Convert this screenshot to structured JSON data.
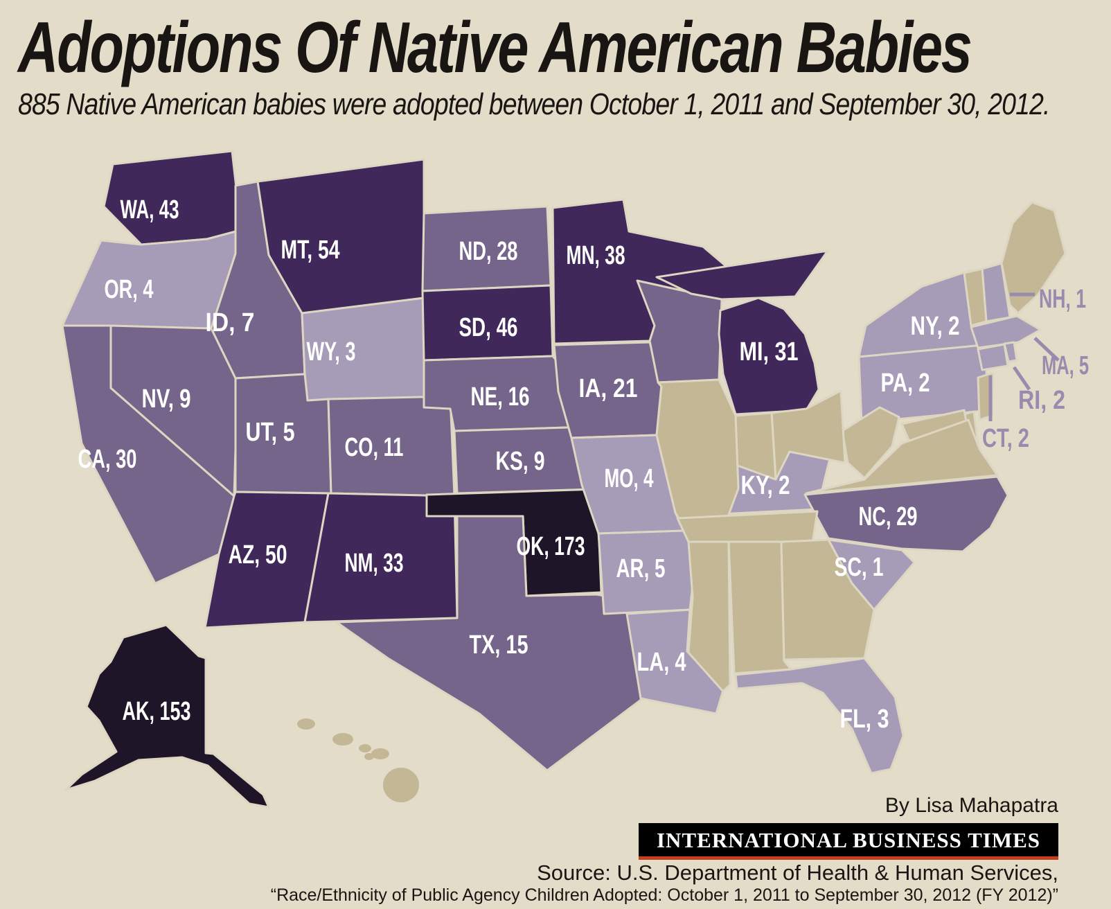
{
  "header": {
    "title": "Adoptions Of Native American Babies",
    "subtitle": "885 Native American babies were adopted between October 1, 2011 and September 30, 2012."
  },
  "footer": {
    "byline": "By Lisa Mahapatra",
    "logo_text": "International Business Times",
    "source_line1": "Source: U.S. Department of Health & Human Services,",
    "source_line2": "“Race/Ethnicity of Public Agency Children Adopted: October 1, 2011 to September 30, 2012 (FY 2012)”"
  },
  "colors": {
    "background": "#e3dcc9",
    "border": "#ddd6c2",
    "title_text": "#181512",
    "subtitle_text": "#181512",
    "state_label": "#ffffff",
    "callout_label": "#998bad",
    "byline_text": "#181512",
    "source_text": "#181512",
    "logo_background": "#000000",
    "logo_text": "#ffffff",
    "logo_underline": "#c5401d",
    "categories": {
      "none": "#c4b795",
      "light": "#a69cb8",
      "medium": "#75658b",
      "dark": "#40285a",
      "darkest": "#1f1528"
    }
  },
  "chart_data": {
    "type": "heatmap",
    "subtype": "us-choropleth-map",
    "title": "Adoptions Of Native American Babies",
    "total_adoptions": 885,
    "period": "October 1, 2011 to September 30, 2012",
    "legend": "none shown; values labeled directly on states, darker = more adoptions, tan = no data shown",
    "states": [
      {
        "code": "WA",
        "value": 43,
        "label": "WA, 43",
        "category": "dark"
      },
      {
        "code": "OR",
        "value": 4,
        "label": "OR, 4",
        "category": "light"
      },
      {
        "code": "CA",
        "value": 30,
        "label": "CA, 30",
        "category": "medium"
      },
      {
        "code": "NV",
        "value": 9,
        "label": "NV, 9",
        "category": "medium"
      },
      {
        "code": "ID",
        "value": 7,
        "label": "ID, 7",
        "category": "medium"
      },
      {
        "code": "MT",
        "value": 54,
        "label": "MT, 54",
        "category": "dark"
      },
      {
        "code": "WY",
        "value": 3,
        "label": "WY, 3",
        "category": "light"
      },
      {
        "code": "UT",
        "value": 5,
        "label": "UT, 5",
        "category": "medium"
      },
      {
        "code": "CO",
        "value": 11,
        "label": "CO, 11",
        "category": "medium"
      },
      {
        "code": "AZ",
        "value": 50,
        "label": "AZ, 50",
        "category": "dark"
      },
      {
        "code": "NM",
        "value": 33,
        "label": "NM, 33",
        "category": "dark"
      },
      {
        "code": "ND",
        "value": 28,
        "label": "ND, 28",
        "category": "medium"
      },
      {
        "code": "SD",
        "value": 46,
        "label": "SD, 46",
        "category": "dark"
      },
      {
        "code": "NE",
        "value": 16,
        "label": "NE, 16",
        "category": "medium"
      },
      {
        "code": "KS",
        "value": 9,
        "label": "KS, 9",
        "category": "medium"
      },
      {
        "code": "OK",
        "value": 173,
        "label": "OK, 173",
        "category": "darkest"
      },
      {
        "code": "TX",
        "value": 15,
        "label": "TX, 15",
        "category": "medium"
      },
      {
        "code": "MN",
        "value": 38,
        "label": "MN, 38",
        "category": "dark"
      },
      {
        "code": "IA",
        "value": 21,
        "label": "IA, 21",
        "category": "medium"
      },
      {
        "code": "MO",
        "value": 4,
        "label": "MO, 4",
        "category": "light"
      },
      {
        "code": "AR",
        "value": 5,
        "label": "AR, 5",
        "category": "light"
      },
      {
        "code": "LA",
        "value": 4,
        "label": "LA, 4",
        "category": "light"
      },
      {
        "code": "WI",
        "value": null,
        "label": "",
        "category": "medium"
      },
      {
        "code": "MI",
        "value": 31,
        "label": "MI, 31",
        "category": "dark"
      },
      {
        "code": "KY",
        "value": 2,
        "label": "KY, 2",
        "category": "light"
      },
      {
        "code": "NC",
        "value": 29,
        "label": "NC, 29",
        "category": "medium"
      },
      {
        "code": "SC",
        "value": 1,
        "label": "SC, 1",
        "category": "light"
      },
      {
        "code": "FL",
        "value": 3,
        "label": "FL, 3",
        "category": "light"
      },
      {
        "code": "NY",
        "value": 2,
        "label": "NY, 2",
        "category": "light"
      },
      {
        "code": "PA",
        "value": 2,
        "label": "PA, 2",
        "category": "light"
      },
      {
        "code": "NH",
        "value": 1,
        "label": "NH, 1",
        "category": "light"
      },
      {
        "code": "MA",
        "value": 5,
        "label": "MA, 5",
        "category": "light"
      },
      {
        "code": "RI",
        "value": 2,
        "label": "RI, 2",
        "category": "light"
      },
      {
        "code": "CT",
        "value": 2,
        "label": "CT, 2",
        "category": "light"
      },
      {
        "code": "AK",
        "value": 153,
        "label": "AK, 153",
        "category": "darkest"
      },
      {
        "code": "ME",
        "value": null,
        "label": "",
        "category": "none"
      },
      {
        "code": "VT",
        "value": null,
        "label": "",
        "category": "none"
      },
      {
        "code": "NJ",
        "value": null,
        "label": "",
        "category": "none"
      },
      {
        "code": "DE",
        "value": null,
        "label": "",
        "category": "none"
      },
      {
        "code": "MD",
        "value": null,
        "label": "",
        "category": "none"
      },
      {
        "code": "VA",
        "value": null,
        "label": "",
        "category": "none"
      },
      {
        "code": "WV",
        "value": null,
        "label": "",
        "category": "none"
      },
      {
        "code": "OH",
        "value": null,
        "label": "",
        "category": "none"
      },
      {
        "code": "IN",
        "value": null,
        "label": "",
        "category": "none"
      },
      {
        "code": "IL",
        "value": null,
        "label": "",
        "category": "none"
      },
      {
        "code": "TN",
        "value": null,
        "label": "",
        "category": "none"
      },
      {
        "code": "MS",
        "value": null,
        "label": "",
        "category": "none"
      },
      {
        "code": "AL",
        "value": null,
        "label": "",
        "category": "none"
      },
      {
        "code": "GA",
        "value": null,
        "label": "",
        "category": "none"
      },
      {
        "code": "HI",
        "value": null,
        "label": "",
        "category": "none"
      }
    ],
    "callout_states": [
      "NH",
      "MA",
      "RI",
      "CT"
    ]
  }
}
